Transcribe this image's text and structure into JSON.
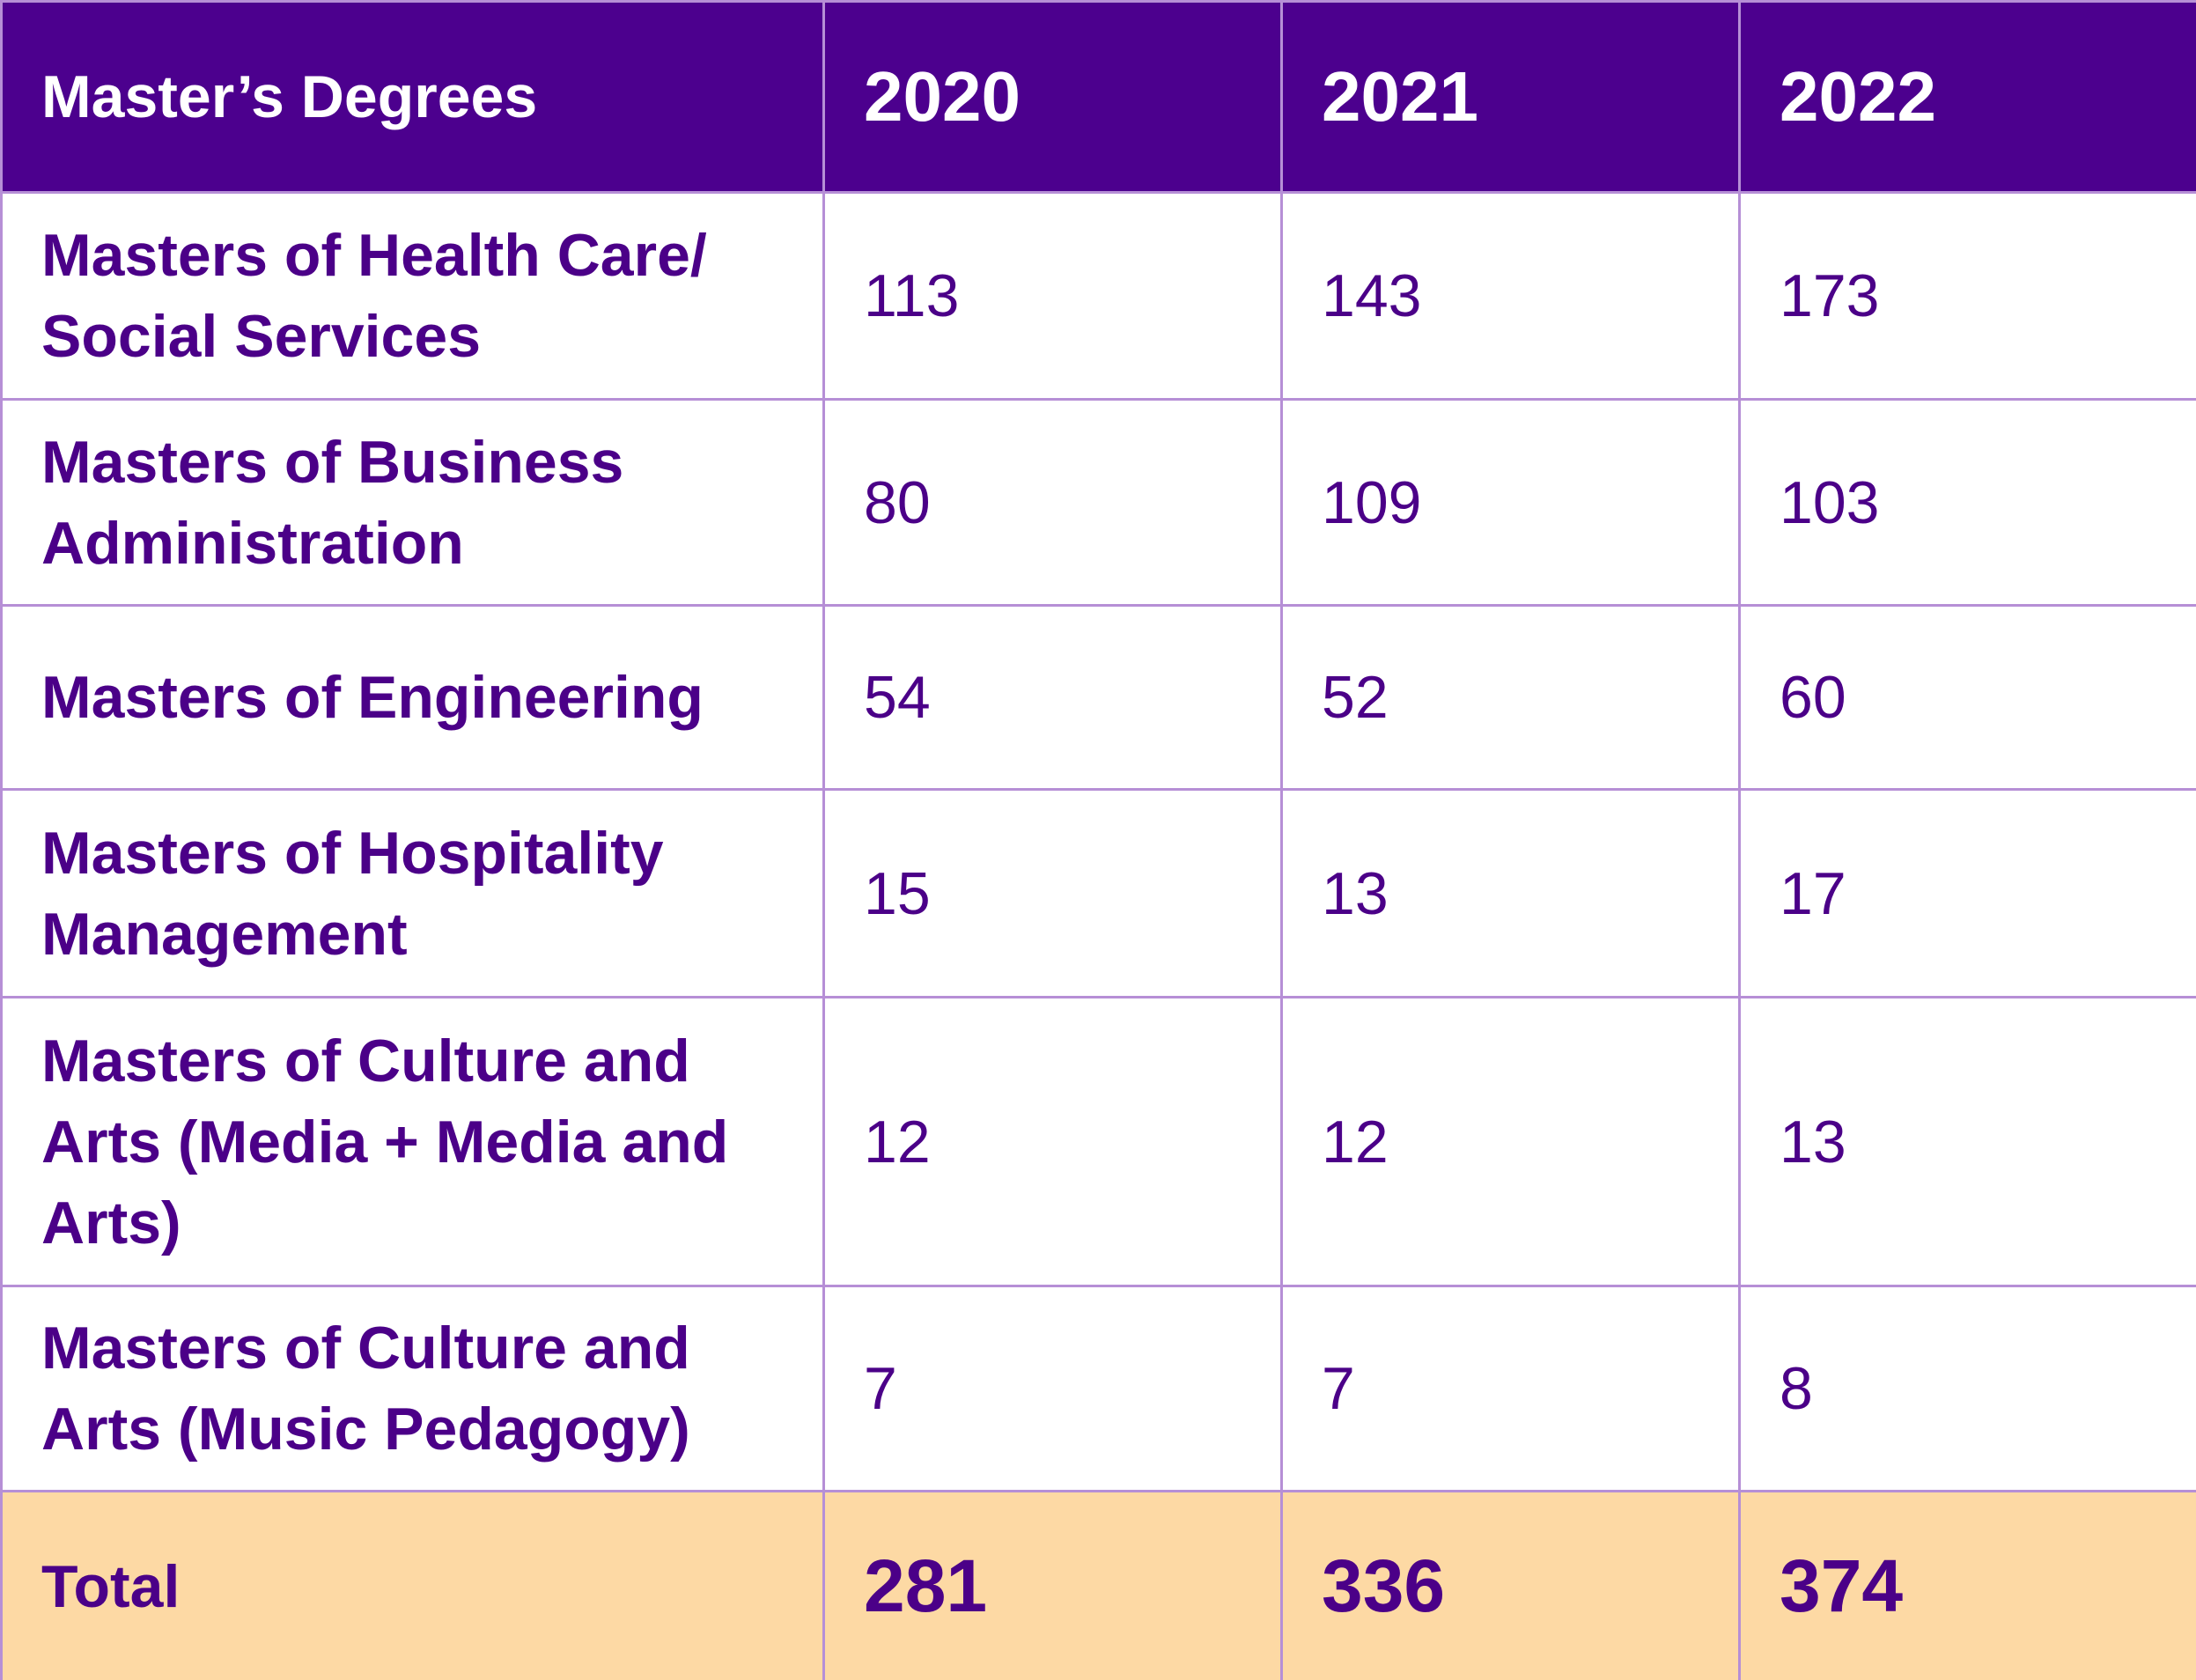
{
  "table": {
    "header": [
      "Master’s Degrees",
      "2020",
      "2021",
      "2022"
    ],
    "rows": [
      [
        "Masters of Health Care/ Social Services",
        "113",
        "143",
        "173"
      ],
      [
        "Masters of Business Administration",
        "80",
        "109",
        "103"
      ],
      [
        "Masters of Engineering",
        "54",
        "52",
        "60"
      ],
      [
        "Masters of Hospitality Management",
        "15",
        "13",
        "17"
      ],
      [
        "Masters of Culture and Arts (Media + Media and Arts)",
        "12",
        "12",
        "13"
      ],
      [
        "Masters of Culture and Arts (Music Pedagogy)",
        "7",
        "7",
        "8"
      ]
    ],
    "total": [
      "Total",
      "281",
      "336",
      "374"
    ]
  }
}
